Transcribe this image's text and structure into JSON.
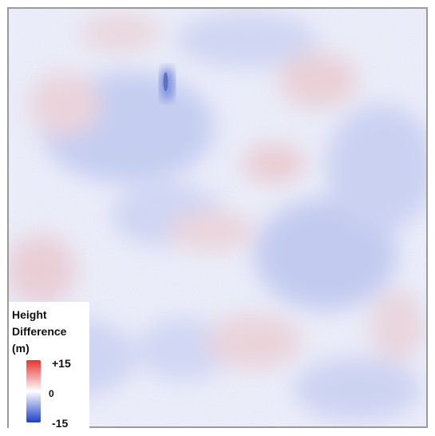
{
  "map": {
    "background_color": "#f4f4fb",
    "positive_color": "#e8332e",
    "neutral_color": "#ffffff",
    "negative_color": "#1c3fc8"
  },
  "legend": {
    "title": "Height\nDifference\n(m)",
    "max_label": "+15",
    "mid_label": "0",
    "min_label": "-15"
  }
}
